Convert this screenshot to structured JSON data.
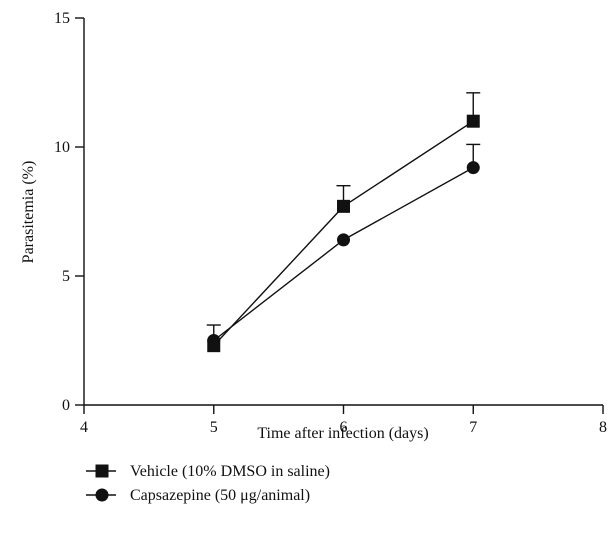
{
  "chart_data": {
    "type": "line",
    "title": "",
    "xlabel": "Time after infection (days)",
    "ylabel": "Parasitemia (%)",
    "xlim": [
      4,
      8
    ],
    "ylim": [
      0,
      15
    ],
    "x_ticks": [
      "4",
      "5",
      "6",
      "7",
      "8"
    ],
    "y_ticks": [
      "0",
      "5",
      "10",
      "15"
    ],
    "grid": false,
    "legend_position": "bottom-left",
    "series": [
      {
        "name": "Vehicle (10% DMSO in saline)",
        "marker": "square",
        "color": "#111111",
        "x": [
          5,
          6,
          7
        ],
        "y": [
          2.3,
          7.7,
          11.0
        ],
        "error_upper": [
          0.8,
          0.8,
          1.1
        ]
      },
      {
        "name": "Capsazepine (50 μg/animal)",
        "marker": "circle",
        "color": "#111111",
        "x": [
          5,
          6,
          7
        ],
        "y": [
          2.5,
          6.4,
          9.2
        ],
        "error_upper": [
          0.0,
          0.0,
          0.9
        ]
      }
    ]
  }
}
